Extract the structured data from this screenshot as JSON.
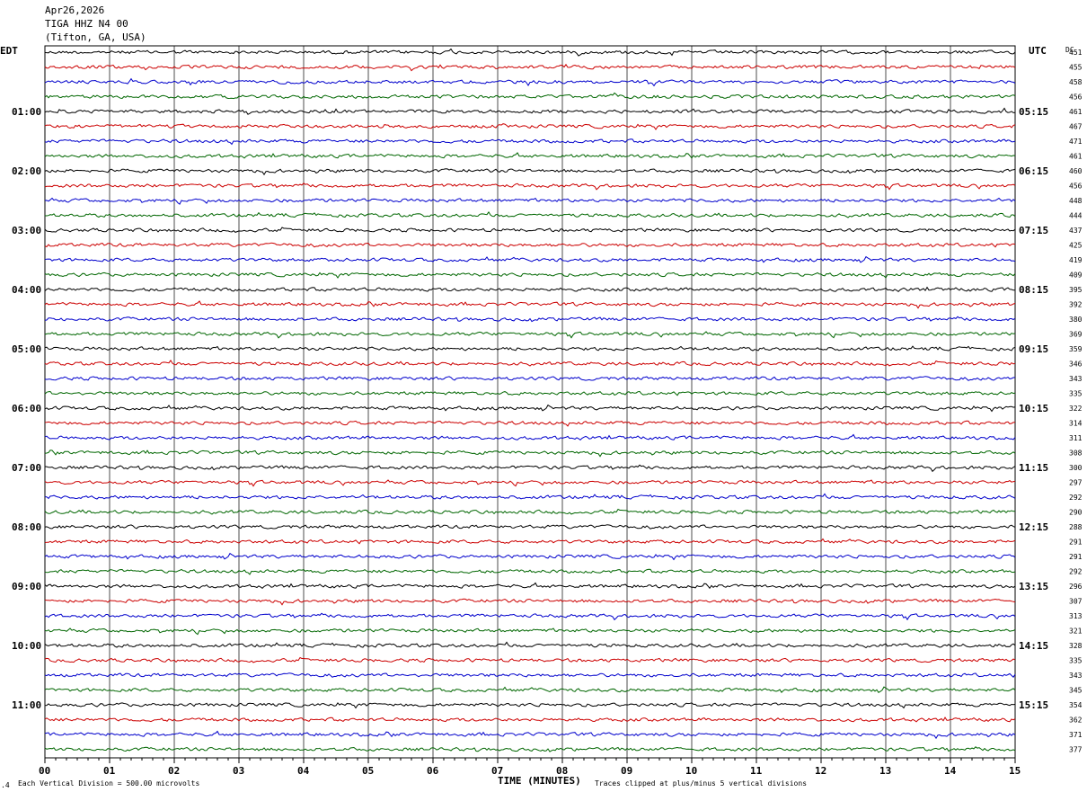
{
  "header": {
    "date": "Apr26,2026",
    "station": "TIGA HHZ N4 00",
    "location": "(Tifton, GA, USA)"
  },
  "left_zone_label": "EDT",
  "right_zone_label": "UTC",
  "dc_label": "DC",
  "chart_data": {
    "type": "line",
    "title": "TIGA HHZ N4 00",
    "xlabel": "TIME (MINUTES)",
    "xlim": [
      0,
      15
    ],
    "x_ticks": [
      "00",
      "01",
      "02",
      "03",
      "04",
      "05",
      "06",
      "07",
      "08",
      "09",
      "10",
      "11",
      "12",
      "13",
      "14",
      "15"
    ],
    "trace_colors": [
      "#000000",
      "#cc0000",
      "#0000cc",
      "#006600"
    ],
    "left_hour_labels": [
      "01:00",
      "02:00",
      "03:00",
      "04:00",
      "05:00",
      "06:00",
      "07:00",
      "08:00",
      "09:00",
      "10:00",
      "11:00"
    ],
    "right_hour_labels": [
      "05:15",
      "06:15",
      "07:15",
      "08:15",
      "09:15",
      "10:15",
      "11:15",
      "12:15",
      "13:15",
      "14:15",
      "15:15"
    ],
    "dc_offsets": [
      451,
      455,
      458,
      456,
      461,
      467,
      471,
      461,
      460,
      456,
      448,
      444,
      437,
      425,
      419,
      409,
      395,
      392,
      380,
      369,
      359,
      346,
      343,
      335,
      322,
      314,
      311,
      308,
      300,
      297,
      292,
      290,
      288,
      291,
      291,
      292,
      296,
      307,
      313,
      321,
      328,
      335,
      343,
      345,
      354,
      362,
      371,
      377
    ]
  },
  "footer": {
    "scale_note": "Each Vertical Division =  500.00 microvolts",
    "clip_note": "Traces clipped at plus/minus 5 vertical divisions"
  },
  "colors": {
    "grid": "#000000",
    "background": "#ffffff"
  }
}
